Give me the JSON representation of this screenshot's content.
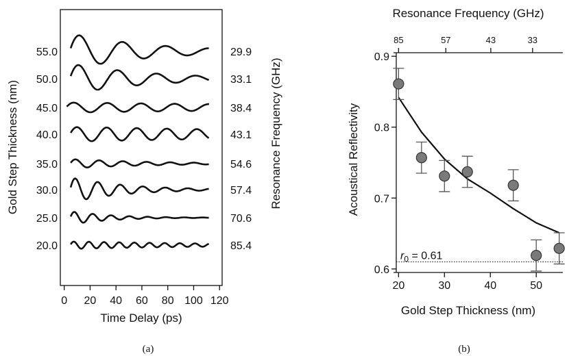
{
  "chart_data": [
    {
      "panel": "a",
      "type": "line",
      "caption": "(a)",
      "xlabel": "Time Delay (ps)",
      "ylabel": "Gold Step Thickness (nm)",
      "right_label": "Resonance Frequency (GHz)",
      "xlim": [
        -3,
        122
      ],
      "xticks": [
        "0",
        "20",
        "40",
        "60",
        "80",
        "100",
        "120"
      ],
      "series": [
        {
          "thickness": "55.0",
          "freq": "29.9",
          "amp": 1.35,
          "decay": 60,
          "t0": 5
        },
        {
          "thickness": "50.0",
          "freq": "33.1",
          "amp": 1.15,
          "decay": 60,
          "t0": 5
        },
        {
          "thickness": "45.0",
          "freq": "38.4",
          "amp": 0.38,
          "decay": 250,
          "t0": 2
        },
        {
          "thickness": "40.0",
          "freq": "43.1",
          "amp": 0.55,
          "decay": 250,
          "t0": 5
        },
        {
          "thickness": "35.0",
          "freq": "54.6",
          "amp": 0.35,
          "decay": 60,
          "t0": 5
        },
        {
          "thickness": "30.0",
          "freq": "57.4",
          "amp": 0.95,
          "decay": 40,
          "t0": 5
        },
        {
          "thickness": "25.0",
          "freq": "70.6",
          "amp": 0.5,
          "decay": 30,
          "t0": 5
        },
        {
          "thickness": "20.0",
          "freq": "85.4",
          "amp": 0.28,
          "decay": 120,
          "t0": 5
        }
      ]
    },
    {
      "panel": "b",
      "type": "scatter",
      "caption": "(b)",
      "xlabel": "Gold Step Thickness (nm)",
      "ylabel": "Acoustical Reflectivity",
      "top_xlabel": "Resonance Frequency (GHz)",
      "xlim": [
        19.5,
        55.8
      ],
      "ylim": [
        0.595,
        0.905
      ],
      "xticks": [
        20,
        30,
        40,
        50
      ],
      "yticks": [
        0.6,
        0.7,
        0.8,
        0.9
      ],
      "top_ticks": [
        {
          "label": "85",
          "x": 20
        },
        {
          "label": "57",
          "x": 30.3
        },
        {
          "label": "43",
          "x": 40.1
        },
        {
          "label": "33",
          "x": 49.2
        }
      ],
      "points": [
        {
          "x": 20,
          "y": 0.861,
          "err": 0.022
        },
        {
          "x": 25,
          "y": 0.757,
          "err": 0.022
        },
        {
          "x": 30,
          "y": 0.731,
          "err": 0.022
        },
        {
          "x": 35,
          "y": 0.737,
          "err": 0.022
        },
        {
          "x": 45,
          "y": 0.718,
          "err": 0.022
        },
        {
          "x": 50,
          "y": 0.619,
          "err": 0.022
        },
        {
          "x": 55,
          "y": 0.629,
          "err": 0.022
        }
      ],
      "fit_curve": {
        "x": [
          20,
          25,
          30,
          35,
          40,
          45,
          50,
          55
        ],
        "y": [
          0.842,
          0.793,
          0.755,
          0.727,
          0.707,
          0.685,
          0.665,
          0.651
        ]
      },
      "reference_line": {
        "y": 0.61,
        "label_r": "r",
        "label_sub": "0",
        "label_val": " = 0.61"
      }
    }
  ]
}
